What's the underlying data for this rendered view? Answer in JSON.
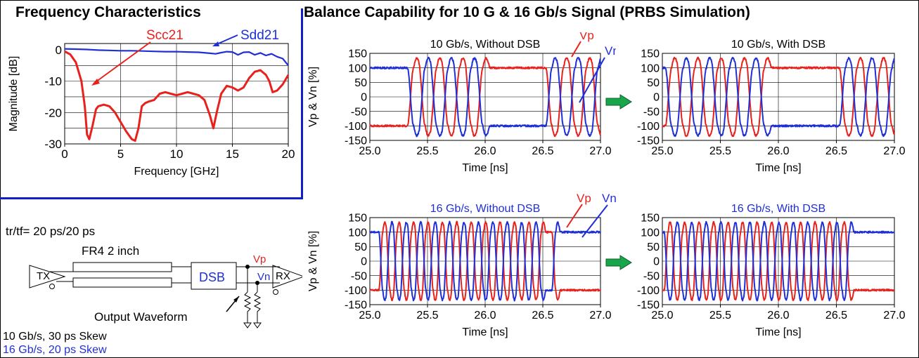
{
  "headings": {
    "frequency": "Frequency Characteristics",
    "balance": "Balance Capability for 10 G & 16 Gb/s Signal (PRBS Simulation)"
  },
  "colors": {
    "red": "#e8211d",
    "blue": "#1f2fd8",
    "accent_border": "#1020c8",
    "arrow_fill": "#19a64b"
  },
  "circuit": {
    "rise_fall": "tr/tf= 20 ps/20 ps",
    "line": "FR4 2 inch",
    "tx": "TX",
    "rx": "RX",
    "dsb": "DSB",
    "vp": "Vp",
    "vn": "Vn",
    "output_waveform": "Output Waveform",
    "skew_10g": "10 Gb/s, 30 ps Skew",
    "skew_16g": "16 Gb/s, 20 ps Skew"
  },
  "chart_data": [
    {
      "type": "line",
      "title": "",
      "xlabel": "Frequency [GHz]",
      "ylabel": "Magnitude [dB]",
      "xlim": [
        0,
        20
      ],
      "ylim": [
        -30,
        2
      ],
      "xticks": [
        0,
        5,
        10,
        15,
        20
      ],
      "yticks": [
        0,
        -10,
        -20,
        -30
      ],
      "xtick_labels": [
        "0",
        "5",
        "10",
        "15",
        "20"
      ],
      "ytick_labels": [
        "0",
        "-10",
        "-20",
        "-30"
      ],
      "grid": true,
      "annotations": [
        "Scc21",
        "Sdd21"
      ],
      "series": [
        {
          "name": "Sdd21",
          "color": "#1f2fd8",
          "x": [
            0,
            1,
            2,
            3,
            4,
            5,
            6,
            7,
            8,
            9,
            10,
            11,
            12,
            13,
            13.5,
            14,
            14.5,
            15,
            15.5,
            16,
            16.5,
            17,
            17.5,
            18,
            18.5,
            19,
            19.5,
            20
          ],
          "y": [
            0.3,
            0.2,
            0.1,
            -0.1,
            -0.2,
            -0.3,
            -0.3,
            -0.4,
            -0.5,
            -0.6,
            -0.6,
            -0.7,
            -0.8,
            -1.1,
            -1.3,
            -0.9,
            -0.6,
            -0.7,
            -1.6,
            -0.8,
            -0.7,
            -1.6,
            -1.0,
            -1.8,
            -1.3,
            -2.2,
            -2.8,
            -5.0
          ]
        },
        {
          "name": "Scc21",
          "color": "#e8211d",
          "x": [
            0,
            0.5,
            1.0,
            1.5,
            1.8,
            2.0,
            2.2,
            2.5,
            2.8,
            3.0,
            3.5,
            4.0,
            4.5,
            5.0,
            5.5,
            6.0,
            6.3,
            6.6,
            6.9,
            7.2,
            7.5,
            8.0,
            8.5,
            9.0,
            9.5,
            10.0,
            10.5,
            11.0,
            11.5,
            12.0,
            12.5,
            13.0,
            13.3,
            13.6,
            14.0,
            14.5,
            15.0,
            15.5,
            16.0,
            16.5,
            17.0,
            17.5,
            18.0,
            18.3,
            18.6,
            19.0,
            19.5,
            20.0
          ],
          "y": [
            -0.5,
            -1.5,
            -4,
            -10,
            -18,
            -27,
            -28.5,
            -24,
            -19,
            -18,
            -17.5,
            -18,
            -20,
            -23,
            -26,
            -28.5,
            -29,
            -25,
            -18,
            -17,
            -16.5,
            -16,
            -14,
            -13.5,
            -14,
            -14.5,
            -14,
            -13.5,
            -14,
            -14.5,
            -16,
            -21,
            -25,
            -20,
            -14,
            -11.5,
            -12,
            -13,
            -12,
            -9,
            -7,
            -6.5,
            -8,
            -10,
            -13.5,
            -13,
            -11,
            -8
          ]
        }
      ]
    },
    {
      "type": "line",
      "title": "10 Gb/s, Without DSB",
      "xlabel": "Time [ns]",
      "ylabel": "Vp & Vn [%]",
      "xlim": [
        25.0,
        27.0
      ],
      "ylim": [
        -150,
        150
      ],
      "xticks": [
        25.0,
        25.5,
        26.0,
        26.5,
        27.0
      ],
      "xtick_labels": [
        "25.0",
        "25.5",
        "26.0",
        "26.5",
        "27.0"
      ],
      "ytick_labels": [
        "150",
        "100",
        "50",
        "0",
        "-50",
        "-100",
        "-150"
      ],
      "grid": true,
      "bit_rate_gbps": 10,
      "annotations": [
        "Vp",
        "Vn"
      ],
      "series": [
        {
          "name": "Vp",
          "color": "#e8211d",
          "bits": "0000101010111111010101010111111111"
        },
        {
          "name": "Vn",
          "color": "#1f2fd8",
          "bits": "1111010101000000101010101000000000"
        }
      ]
    },
    {
      "type": "line",
      "title": "10 Gb/s, With DSB",
      "xlabel": "Time [ns]",
      "ylabel": "",
      "xlim": [
        25.0,
        27.0
      ],
      "ylim": [
        -150,
        150
      ],
      "xticks": [
        25.0,
        25.5,
        26.0,
        26.5,
        27.0
      ],
      "xtick_labels": [
        "25.0",
        "25.5",
        "26.0",
        "26.5",
        "27.0"
      ],
      "ytick_labels": [
        "150",
        "100",
        "50",
        "0",
        "-50",
        "-100",
        "-150"
      ],
      "grid": true,
      "bit_rate_gbps": 10,
      "series": [
        {
          "name": "Vp",
          "color": "#e8211d",
          "bits": "0101010101111111010101010111111111"
        },
        {
          "name": "Vn",
          "color": "#1f2fd8",
          "bits": "1010101010000000101010101000000000"
        }
      ]
    },
    {
      "type": "line",
      "title": "16 Gb/s, Without DSB",
      "xlabel": "Time [ns]",
      "ylabel": "Vp & Vn [%]",
      "xlim": [
        25.0,
        27.0
      ],
      "ylim": [
        -150,
        150
      ],
      "xticks": [
        25.0,
        25.5,
        26.0,
        26.5,
        27.0
      ],
      "xtick_labels": [
        "25.0",
        "25.5",
        "26.0",
        "26.5",
        "27.0"
      ],
      "ytick_labels": [
        "150",
        "100",
        "50",
        "0",
        "-50",
        "-100",
        "-150"
      ],
      "grid": true,
      "bit_rate_gbps": 16,
      "annotations": [
        "Vp",
        "Vn"
      ],
      "series": [
        {
          "name": "Vp",
          "color": "#e8211d",
          "bits": "00101010101010101010101011000000010111"
        },
        {
          "name": "Vn",
          "color": "#1f2fd8",
          "bits": "11010101010101010101010100111111101000"
        }
      ]
    },
    {
      "type": "line",
      "title": "16 Gb/s, With DSB",
      "xlabel": "Time [ns]",
      "ylabel": "",
      "xlim": [
        25.0,
        27.0
      ],
      "ylim": [
        -150,
        150
      ],
      "xticks": [
        25.0,
        25.5,
        26.0,
        26.5,
        27.0
      ],
      "xtick_labels": [
        "25.0",
        "25.5",
        "26.0",
        "26.5",
        "27.0"
      ],
      "ytick_labels": [
        "150",
        "100",
        "50",
        "0",
        "-50",
        "-100",
        "-150"
      ],
      "grid": true,
      "bit_rate_gbps": 16,
      "series": [
        {
          "name": "Vp",
          "color": "#e8211d",
          "bits": "01010101010101010101010101000000010101"
        },
        {
          "name": "Vn",
          "color": "#1f2fd8",
          "bits": "10101010101010101010101010111111101010"
        }
      ]
    }
  ]
}
